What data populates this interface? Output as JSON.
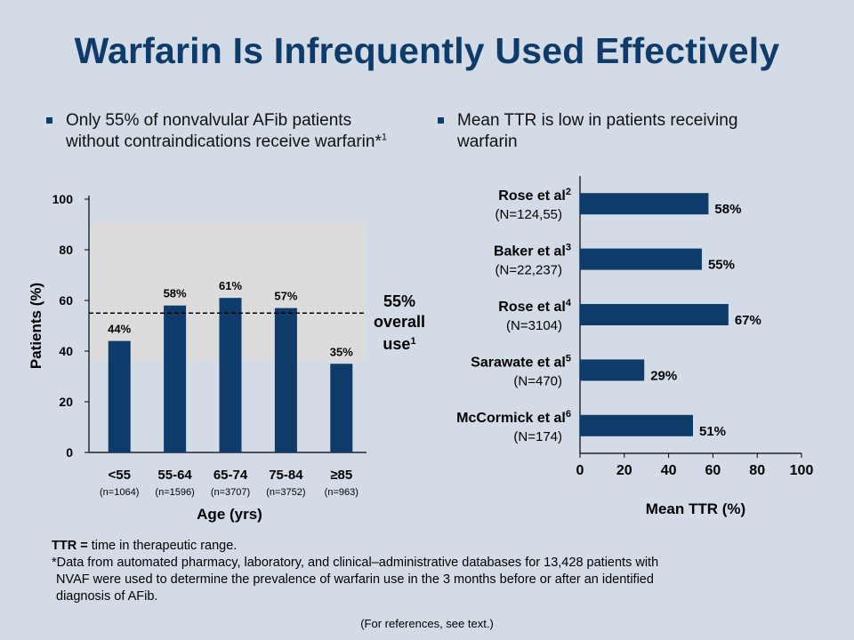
{
  "title": "Warfarin Is Infrequently Used Effectively",
  "left_bullet": {
    "text": "Only 55% of nonvalvular AFib patients without contraindications receive warfarin*",
    "sup": "1"
  },
  "right_bullet": {
    "text": "Mean TTR is low in patients receiving warfarin"
  },
  "chart_data": [
    {
      "type": "bar",
      "orientation": "vertical",
      "categories": [
        "<55",
        "55-64",
        "65-74",
        "75-84",
        "≥85"
      ],
      "category_sublabels": [
        "(n=1064)",
        "(n=1596)",
        "(n=3707)",
        "(n=3752)",
        "(n=963)"
      ],
      "values": [
        44,
        58,
        61,
        57,
        35
      ],
      "data_labels": [
        "44%",
        "58%",
        "61%",
        "57%",
        "35%"
      ],
      "xlabel": "Age (yrs)",
      "ylabel": "Patients (%)",
      "ylim": [
        0,
        100
      ],
      "yticks": [
        0,
        20,
        40,
        60,
        80,
        100
      ],
      "reference_line": {
        "value": 55,
        "style": "dashed",
        "label_lines": [
          "55%",
          "overall",
          "use"
        ],
        "label_sup": "1"
      },
      "shaded_band": {
        "from": 36,
        "to": 91,
        "color": "#dcdcdc"
      },
      "bar_color": "#0f3b6b"
    },
    {
      "type": "bar",
      "orientation": "horizontal",
      "categories": [
        {
          "name": "Rose et al",
          "sup": "2",
          "n": "(N=124,55)"
        },
        {
          "name": "Baker et al",
          "sup": "3",
          "n": "(N=22,237)"
        },
        {
          "name": "Rose et al",
          "sup": "4",
          "n": "(N=3104)"
        },
        {
          "name": "Sarawate et al",
          "sup": "5",
          "n": "(N=470)"
        },
        {
          "name": "McCormick et al",
          "sup": "6",
          "n": "(N=174)"
        }
      ],
      "values": [
        58,
        55,
        67,
        29,
        51
      ],
      "data_labels": [
        "58%",
        "55%",
        "67%",
        "29%",
        "51%"
      ],
      "xlabel": "Mean TTR (%)",
      "xlim": [
        0,
        100
      ],
      "xticks": [
        0,
        20,
        40,
        60,
        80,
        100
      ],
      "bar_color": "#0f3b6b"
    }
  ],
  "footer": {
    "ttr_abbr": "TTR =",
    "ttr_def": " time in therapeutic range.",
    "note_line1": "*Data from automated pharmacy, laboratory, and clinical–administrative databases for 13,428 patients with",
    "note_line2": "NVAF were used to determine the prevalence of warfarin use in the 3 months before or after an identified",
    "note_line3": "diagnosis of AFib.",
    "references": "(For references, see text.)"
  }
}
